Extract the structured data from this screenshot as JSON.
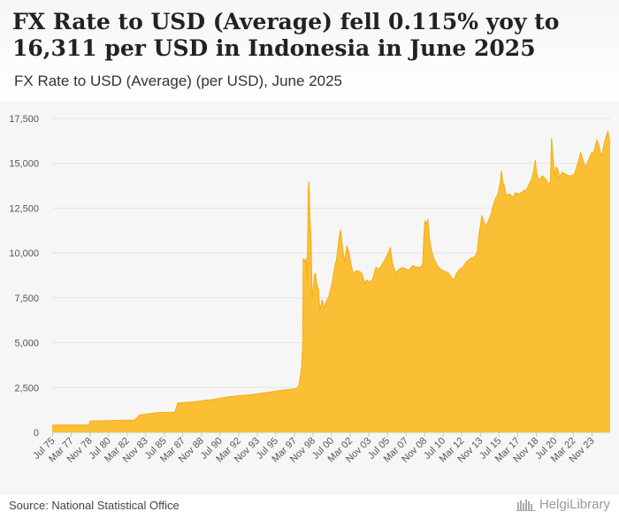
{
  "header": {
    "title": "FX Rate to USD (Average) fell 0.115% yoy to 16,311 per USD in Indonesia in June 2025",
    "subtitle": "FX Rate to USD (Average) (per USD), June 2025"
  },
  "footer": {
    "source": "Source: National Statistical Office",
    "brand": "HelgiLibrary"
  },
  "colors": {
    "fill": "#fbbf35",
    "stroke": "#f5ad13",
    "grid": "#e3e3e3",
    "axis_text": "#555555"
  },
  "chart_data": {
    "type": "area",
    "title": "FX Rate to USD (Average) (per USD), June 2025",
    "xlabel": "",
    "ylabel": "",
    "ylim": [
      0,
      17500
    ],
    "yticks": [
      0,
      2500,
      5000,
      7500,
      10000,
      12500,
      15000,
      17500
    ],
    "ytick_labels": [
      "0",
      "2,500",
      "5,000",
      "7,500",
      "10,000",
      "12,500",
      "15,000",
      "17,500"
    ],
    "x_range": [
      1975.5,
      2025.5
    ],
    "xticks": [
      {
        "label": "Jul 75",
        "t": 1975.54
      },
      {
        "label": "Mar 77",
        "t": 1977.21
      },
      {
        "label": "Nov 78",
        "t": 1978.88
      },
      {
        "label": "Jul 80",
        "t": 1980.54
      },
      {
        "label": "Mar 82",
        "t": 1982.21
      },
      {
        "label": "Nov 83",
        "t": 1983.88
      },
      {
        "label": "Jul 85",
        "t": 1985.54
      },
      {
        "label": "Mar 87",
        "t": 1987.21
      },
      {
        "label": "Nov 88",
        "t": 1988.88
      },
      {
        "label": "Jul 90",
        "t": 1990.54
      },
      {
        "label": "Mar 92",
        "t": 1992.21
      },
      {
        "label": "Nov 93",
        "t": 1993.88
      },
      {
        "label": "Jul 95",
        "t": 1995.54
      },
      {
        "label": "Mar 97",
        "t": 1997.21
      },
      {
        "label": "Nov 98",
        "t": 1998.88
      },
      {
        "label": "Jul 00",
        "t": 2000.54
      },
      {
        "label": "Mar 02",
        "t": 2002.21
      },
      {
        "label": "Nov 03",
        "t": 2003.88
      },
      {
        "label": "Jul 05",
        "t": 2005.54
      },
      {
        "label": "Mar 07",
        "t": 2007.21
      },
      {
        "label": "Nov 08",
        "t": 2008.88
      },
      {
        "label": "Jul 10",
        "t": 2010.54
      },
      {
        "label": "Mar 12",
        "t": 2012.21
      },
      {
        "label": "Nov 13",
        "t": 2013.88
      },
      {
        "label": "Jul 15",
        "t": 2015.54
      },
      {
        "label": "Mar 17",
        "t": 2017.21
      },
      {
        "label": "Nov 18",
        "t": 2018.88
      },
      {
        "label": "Jul 20",
        "t": 2020.54
      },
      {
        "label": "Mar 22",
        "t": 2022.21
      },
      {
        "label": "Nov 23",
        "t": 2023.88
      }
    ],
    "series": [
      {
        "name": "FX Rate to USD (Average)",
        "points": [
          [
            1975.5,
            415
          ],
          [
            1978.8,
            415
          ],
          [
            1978.9,
            625
          ],
          [
            1982.9,
            692
          ],
          [
            1983.3,
            970
          ],
          [
            1985.0,
            1110
          ],
          [
            1986.5,
            1130
          ],
          [
            1986.75,
            1640
          ],
          [
            1988.0,
            1685
          ],
          [
            1989.0,
            1770
          ],
          [
            1990.0,
            1843
          ],
          [
            1991.0,
            1950
          ],
          [
            1992.0,
            2030
          ],
          [
            1993.0,
            2087
          ],
          [
            1994.0,
            2160
          ],
          [
            1995.0,
            2249
          ],
          [
            1996.0,
            2342
          ],
          [
            1997.4,
            2440
          ],
          [
            1997.6,
            2600
          ],
          [
            1997.75,
            3200
          ],
          [
            1997.85,
            3650
          ],
          [
            1997.95,
            5000
          ],
          [
            1998.0,
            9700
          ],
          [
            1998.15,
            9500
          ],
          [
            1998.25,
            9700
          ],
          [
            1998.35,
            8500
          ],
          [
            1998.45,
            13500
          ],
          [
            1998.5,
            14000
          ],
          [
            1998.6,
            12000
          ],
          [
            1998.7,
            10700
          ],
          [
            1998.8,
            7500
          ],
          [
            1998.9,
            8000
          ],
          [
            1999.0,
            8750
          ],
          [
            1999.1,
            8900
          ],
          [
            1999.2,
            8300
          ],
          [
            1999.35,
            8000
          ],
          [
            1999.5,
            6800
          ],
          [
            1999.6,
            7100
          ],
          [
            1999.7,
            7400
          ],
          [
            1999.85,
            6950
          ],
          [
            2000.0,
            7200
          ],
          [
            2000.3,
            7600
          ],
          [
            2000.6,
            8400
          ],
          [
            2000.8,
            9200
          ],
          [
            2001.0,
            9700
          ],
          [
            2001.2,
            10800
          ],
          [
            2001.35,
            11300
          ],
          [
            2001.5,
            10400
          ],
          [
            2001.7,
            9500
          ],
          [
            2001.9,
            10400
          ],
          [
            2002.1,
            10000
          ],
          [
            2002.3,
            9300
          ],
          [
            2002.5,
            8800
          ],
          [
            2002.7,
            9000
          ],
          [
            2002.9,
            9000
          ],
          [
            2003.1,
            8950
          ],
          [
            2003.3,
            8800
          ],
          [
            2003.5,
            8300
          ],
          [
            2003.7,
            8500
          ],
          [
            2003.9,
            8400
          ],
          [
            2004.2,
            8500
          ],
          [
            2004.5,
            9200
          ],
          [
            2004.8,
            9100
          ],
          [
            2005.0,
            9300
          ],
          [
            2005.3,
            9600
          ],
          [
            2005.6,
            10000
          ],
          [
            2005.8,
            10300
          ],
          [
            2006.0,
            9400
          ],
          [
            2006.3,
            8900
          ],
          [
            2006.6,
            9100
          ],
          [
            2006.9,
            9200
          ],
          [
            2007.2,
            9100
          ],
          [
            2007.5,
            9050
          ],
          [
            2007.8,
            9300
          ],
          [
            2008.2,
            9200
          ],
          [
            2008.5,
            9200
          ],
          [
            2008.7,
            9400
          ],
          [
            2008.8,
            10800
          ],
          [
            2008.9,
            11800
          ],
          [
            2009.05,
            11600
          ],
          [
            2009.15,
            11900
          ],
          [
            2009.3,
            10800
          ],
          [
            2009.5,
            10100
          ],
          [
            2009.7,
            9700
          ],
          [
            2010.0,
            9300
          ],
          [
            2010.3,
            9100
          ],
          [
            2010.6,
            9000
          ],
          [
            2011.0,
            8900
          ],
          [
            2011.3,
            8600
          ],
          [
            2011.5,
            8500
          ],
          [
            2011.7,
            8800
          ],
          [
            2012.0,
            9100
          ],
          [
            2012.3,
            9200
          ],
          [
            2012.6,
            9500
          ],
          [
            2013.0,
            9700
          ],
          [
            2013.4,
            9800
          ],
          [
            2013.6,
            10100
          ],
          [
            2013.75,
            11100
          ],
          [
            2013.9,
            11600
          ],
          [
            2014.0,
            12100
          ],
          [
            2014.2,
            11700
          ],
          [
            2014.4,
            11500
          ],
          [
            2014.6,
            11800
          ],
          [
            2014.8,
            12100
          ],
          [
            2015.0,
            12600
          ],
          [
            2015.2,
            13000
          ],
          [
            2015.45,
            13300
          ],
          [
            2015.65,
            13900
          ],
          [
            2015.75,
            14600
          ],
          [
            2015.9,
            13900
          ],
          [
            2016.0,
            13800
          ],
          [
            2016.2,
            13200
          ],
          [
            2016.5,
            13300
          ],
          [
            2016.8,
            13100
          ],
          [
            2017.0,
            13350
          ],
          [
            2017.4,
            13300
          ],
          [
            2017.8,
            13500
          ],
          [
            2018.0,
            13500
          ],
          [
            2018.2,
            13800
          ],
          [
            2018.45,
            14100
          ],
          [
            2018.65,
            14600
          ],
          [
            2018.8,
            15200
          ],
          [
            2018.9,
            14500
          ],
          [
            2019.0,
            14200
          ],
          [
            2019.2,
            14100
          ],
          [
            2019.4,
            14300
          ],
          [
            2019.6,
            14200
          ],
          [
            2019.85,
            14000
          ],
          [
            2020.0,
            13800
          ],
          [
            2020.15,
            14000
          ],
          [
            2020.25,
            16400
          ],
          [
            2020.35,
            15700
          ],
          [
            2020.5,
            14300
          ],
          [
            2020.65,
            14800
          ],
          [
            2020.8,
            14700
          ],
          [
            2020.95,
            14200
          ],
          [
            2021.2,
            14500
          ],
          [
            2021.5,
            14400
          ],
          [
            2021.8,
            14300
          ],
          [
            2022.0,
            14300
          ],
          [
            2022.3,
            14400
          ],
          [
            2022.5,
            14800
          ],
          [
            2022.7,
            15200
          ],
          [
            2022.85,
            15600
          ],
          [
            2023.0,
            15300
          ],
          [
            2023.15,
            15000
          ],
          [
            2023.3,
            14800
          ],
          [
            2023.5,
            15100
          ],
          [
            2023.7,
            15400
          ],
          [
            2023.85,
            15600
          ],
          [
            2024.0,
            15600
          ],
          [
            2024.15,
            15900
          ],
          [
            2024.3,
            16300
          ],
          [
            2024.45,
            16100
          ],
          [
            2024.6,
            15700
          ],
          [
            2024.75,
            15400
          ],
          [
            2024.9,
            15900
          ],
          [
            2025.05,
            16300
          ],
          [
            2025.2,
            16600
          ],
          [
            2025.3,
            16800
          ],
          [
            2025.42,
            16300
          ],
          [
            2025.5,
            16311
          ]
        ]
      }
    ]
  }
}
